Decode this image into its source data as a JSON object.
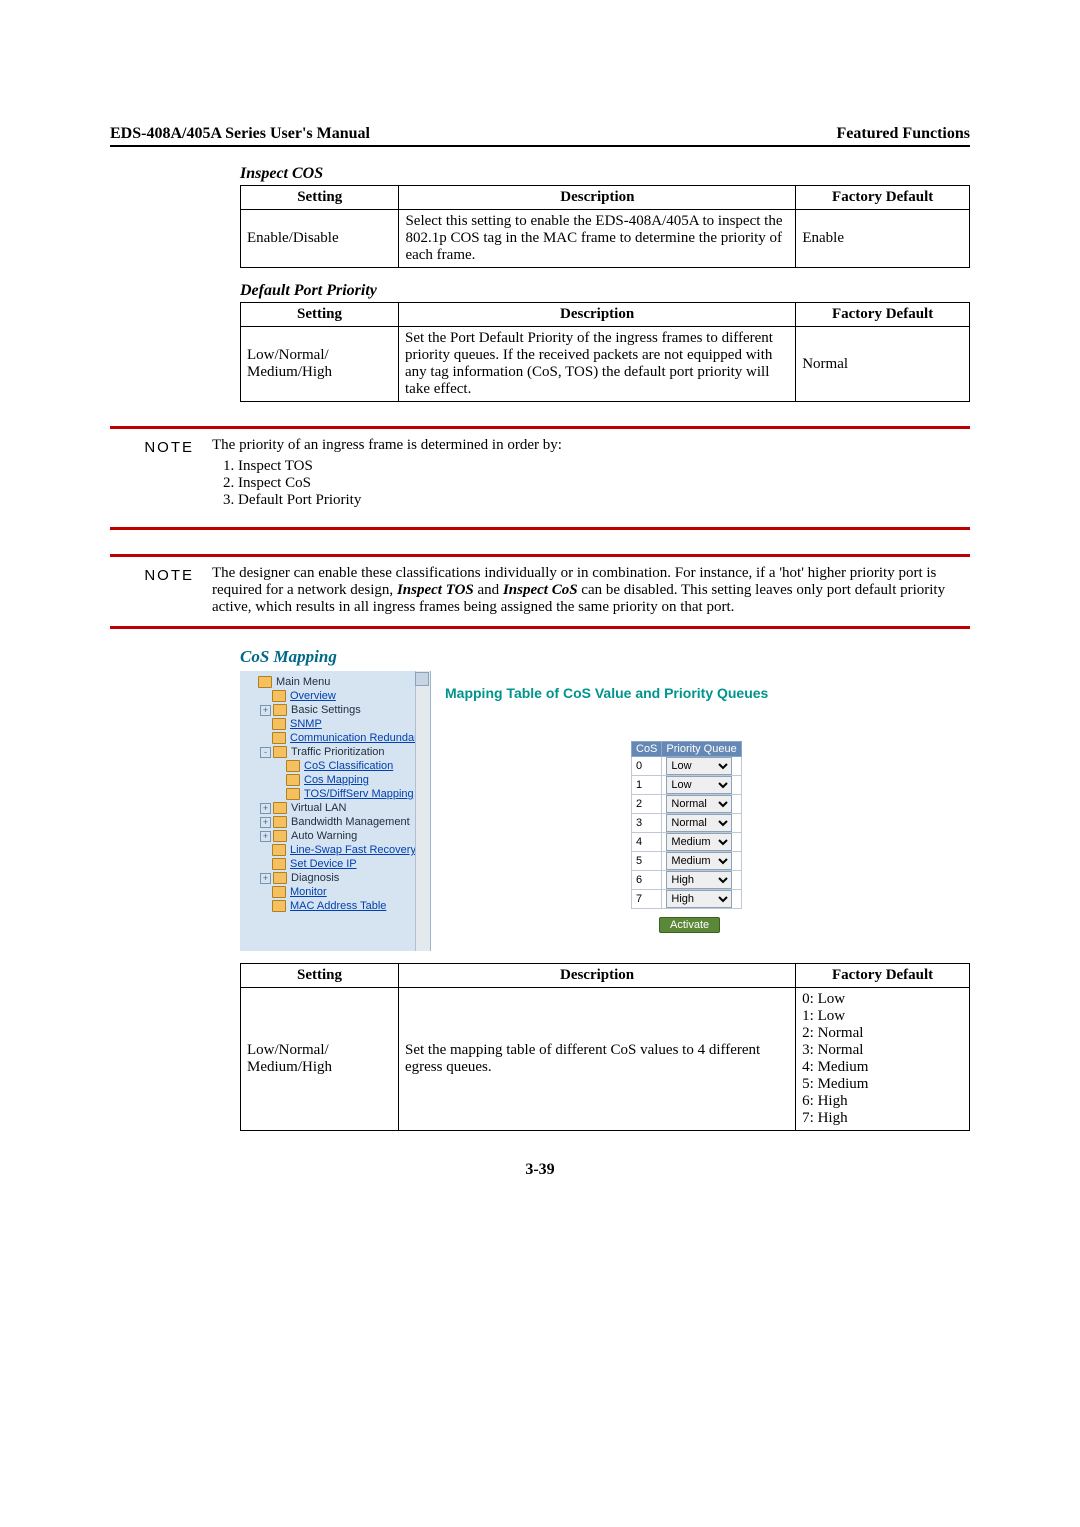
{
  "header": {
    "left": "EDS-408A/405A Series User's Manual",
    "right": "Featured Functions"
  },
  "inspect_cos": {
    "title": "Inspect COS",
    "headers": [
      "Setting",
      "Description",
      "Factory Default"
    ],
    "row": {
      "setting": "Enable/Disable",
      "description": "Select this setting to enable the EDS-408A/405A to inspect the 802.1p COS tag in the MAC frame to determine the priority of each frame.",
      "default": "Enable"
    }
  },
  "default_port_priority": {
    "title": "Default Port Priority",
    "headers": [
      "Setting",
      "Description",
      "Factory Default"
    ],
    "row": {
      "setting": "Low/Normal/ Medium/High",
      "description": "Set the Port Default Priority of the ingress frames to different priority queues. If the received packets are not equipped with any tag information (CoS, TOS) the default port priority will take effect.",
      "default": "Normal"
    }
  },
  "note1": {
    "label": "NOTE",
    "intro": "The priority of an ingress frame is determined in order by:",
    "items": [
      "Inspect TOS",
      "Inspect CoS",
      "Default Port Priority"
    ]
  },
  "note2": {
    "label": "NOTE",
    "text_parts": {
      "p1": "The designer can enable these classifications individually or in combination. For instance, if a 'hot' higher priority port is required for a network design, ",
      "em1": "Inspect TOS",
      "mid": " and ",
      "em2": "Inspect CoS",
      "p2": " can be disabled. This setting leaves only port default priority active, which results in all ingress frames being assigned the same priority on that port."
    }
  },
  "cos_mapping": {
    "title": "CoS Mapping",
    "ss_title": "Mapping Table of CoS Value and Priority Queues",
    "tree": [
      {
        "depth": 0,
        "plus": "",
        "label": "Main Menu",
        "link": false
      },
      {
        "depth": 1,
        "plus": "",
        "label": "Overview",
        "link": true
      },
      {
        "depth": 1,
        "plus": "+",
        "label": "Basic Settings",
        "link": false
      },
      {
        "depth": 1,
        "plus": "",
        "label": "SNMP",
        "link": true
      },
      {
        "depth": 1,
        "plus": "",
        "label": "Communication Redundancy",
        "link": true
      },
      {
        "depth": 1,
        "plus": "-",
        "label": "Traffic Prioritization",
        "link": false
      },
      {
        "depth": 2,
        "plus": "",
        "label": "CoS Classification",
        "link": true
      },
      {
        "depth": 2,
        "plus": "",
        "label": "Cos Mapping",
        "link": true
      },
      {
        "depth": 2,
        "plus": "",
        "label": "TOS/DiffServ Mapping",
        "link": true
      },
      {
        "depth": 1,
        "plus": "+",
        "label": "Virtual LAN",
        "link": false
      },
      {
        "depth": 1,
        "plus": "+",
        "label": "Bandwidth Management",
        "link": false
      },
      {
        "depth": 1,
        "plus": "+",
        "label": "Auto Warning",
        "link": false
      },
      {
        "depth": 1,
        "plus": "",
        "label": "Line-Swap Fast Recovery",
        "link": true
      },
      {
        "depth": 1,
        "plus": "",
        "label": "Set Device IP",
        "link": true
      },
      {
        "depth": 1,
        "plus": "+",
        "label": "Diagnosis",
        "link": false
      },
      {
        "depth": 1,
        "plus": "",
        "label": "Monitor",
        "link": true
      },
      {
        "depth": 1,
        "plus": "",
        "label": "MAC Address Table",
        "link": true
      }
    ],
    "cos_headers": [
      "CoS",
      "Priority Queue"
    ],
    "cos_rows": [
      {
        "cos": "0",
        "val": "Low"
      },
      {
        "cos": "1",
        "val": "Low"
      },
      {
        "cos": "2",
        "val": "Normal"
      },
      {
        "cos": "3",
        "val": "Normal"
      },
      {
        "cos": "4",
        "val": "Medium"
      },
      {
        "cos": "5",
        "val": "Medium"
      },
      {
        "cos": "6",
        "val": "High"
      },
      {
        "cos": "7",
        "val": "High"
      }
    ],
    "activate": "Activate"
  },
  "cos_mapping_table": {
    "headers": [
      "Setting",
      "Description",
      "Factory Default"
    ],
    "row": {
      "setting": "Low/Normal/ Medium/High",
      "description": "Set the mapping table of different CoS values to 4 different egress queues.",
      "default_lines": [
        "0: Low",
        "1: Low",
        "2: Normal",
        "3: Normal",
        "4: Medium",
        "5: Medium",
        "6: High",
        "7: High"
      ]
    }
  },
  "page_number": "3-39"
}
